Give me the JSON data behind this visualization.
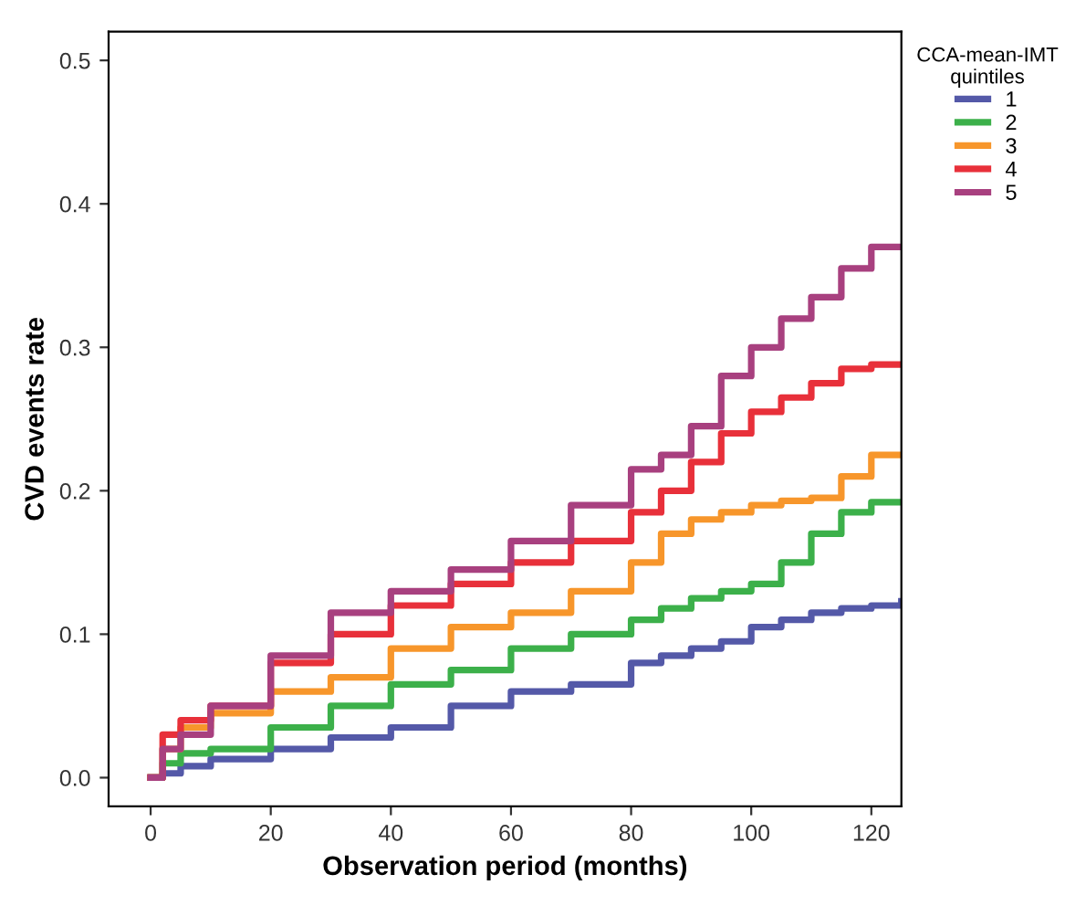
{
  "chart_data": {
    "type": "step",
    "xlabel": "Observation period (months)",
    "ylabel": "CVD events rate",
    "legend_title": "CCA-mean-IMT\nquintiles",
    "legend": "top right",
    "grid": false,
    "xlim": [
      -7,
      125
    ],
    "ylim": [
      -0.02,
      0.52
    ],
    "xticks": [
      0,
      20,
      40,
      60,
      80,
      100,
      120
    ],
    "yticks": [
      {
        "value": 0,
        "label": "0.0"
      },
      0.1,
      0.2,
      0.3,
      0.4,
      0.5
    ],
    "x": [
      0,
      2,
      5,
      10,
      20,
      30,
      40,
      50,
      60,
      70,
      80,
      85,
      90,
      95,
      100,
      105,
      110,
      115,
      120,
      125
    ],
    "series": [
      {
        "name": "1",
        "color": "#5459a8",
        "values": [
          0,
          0.003,
          0.008,
          0.013,
          0.02,
          0.028,
          0.035,
          0.05,
          0.06,
          0.065,
          0.08,
          0.085,
          0.09,
          0.095,
          0.105,
          0.11,
          0.115,
          0.118,
          0.12,
          0.123
        ]
      },
      {
        "name": "2",
        "color": "#3cb04a",
        "values": [
          0,
          0.01,
          0.017,
          0.02,
          0.035,
          0.05,
          0.065,
          0.075,
          0.09,
          0.1,
          0.11,
          0.118,
          0.125,
          0.13,
          0.135,
          0.15,
          0.17,
          0.185,
          0.192,
          0.192
        ]
      },
      {
        "name": "3",
        "color": "#f7962b",
        "values": [
          0,
          0.02,
          0.035,
          0.045,
          0.06,
          0.07,
          0.09,
          0.105,
          0.115,
          0.13,
          0.15,
          0.17,
          0.18,
          0.185,
          0.19,
          0.193,
          0.195,
          0.21,
          0.225,
          0.225
        ]
      },
      {
        "name": "4",
        "color": "#e8303a",
        "values": [
          0,
          0.03,
          0.04,
          0.05,
          0.08,
          0.1,
          0.12,
          0.135,
          0.15,
          0.165,
          0.185,
          0.2,
          0.22,
          0.24,
          0.255,
          0.265,
          0.275,
          0.285,
          0.288,
          0.288
        ]
      },
      {
        "name": "5",
        "color": "#a8407f",
        "values": [
          0,
          0.02,
          0.03,
          0.05,
          0.085,
          0.115,
          0.13,
          0.145,
          0.165,
          0.19,
          0.215,
          0.225,
          0.245,
          0.28,
          0.3,
          0.32,
          0.335,
          0.355,
          0.37,
          0.37
        ]
      }
    ]
  }
}
